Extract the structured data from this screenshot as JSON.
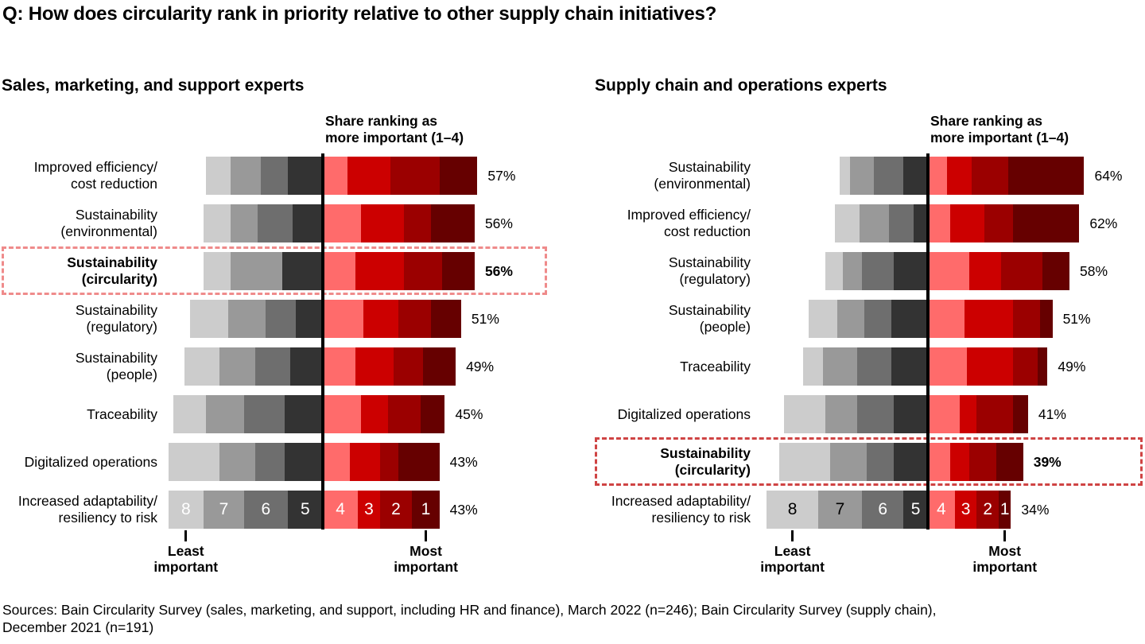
{
  "title": "Q: How does circularity rank in priority relative to other supply chain initiatives?",
  "sources_line1": "Sources: Bain Circularity Survey (sales, marketing, and support, including HR and finance), March 2022 (n=246); Bain Circularity Survey (supply chain),",
  "sources_line2": "December 2021 (n=191)",
  "colors": {
    "gray_segments": [
      "#cccccc",
      "#999999",
      "#6e6e6e",
      "#333333"
    ],
    "red_segments": [
      "#ff6b6b",
      "#cc0000",
      "#9b0000",
      "#660000"
    ],
    "axis_line": "#000000",
    "left_highlight_box": "#ef8b8b",
    "right_highlight_box": "#cf4444",
    "background": "#ffffff",
    "text": "#000000"
  },
  "chart_data": {
    "type": "diverging_stacked_bar",
    "description": "Two diverging stacked bar panels; gray segments = ranks 8-5 (least important side), red segments = ranks 4-1 (most important side). Percent label = share ranking initiative as more important (1-4). Segment values are percent of respondents.",
    "rank_labels": [
      "8",
      "7",
      "6",
      "5",
      "4",
      "3",
      "2",
      "1"
    ],
    "panels": [
      {
        "title": "Sales, marketing, and support experts",
        "annotation_line1": "Share ranking as",
        "annotation_line2": "more important (1–4)",
        "least_label": "Least important",
        "most_label": "Most important",
        "digit_colors": [
          "#ffffff",
          "#ffffff",
          "#ffffff",
          "#ffffff",
          "#ffffff",
          "#ffffff",
          "#ffffff",
          "#ffffff"
        ],
        "rows": [
          {
            "label_lines": [
              "Improved efficiency/",
              "cost reduction"
            ],
            "share_pct": 57,
            "share_label": "57%",
            "segments": [
              9,
              11,
              10,
              13,
              9,
              16,
              18,
              14
            ],
            "highlight": false
          },
          {
            "label_lines": [
              "Sustainability",
              "(environmental)"
            ],
            "share_pct": 56,
            "share_label": "56%",
            "segments": [
              10,
              10,
              13,
              11,
              14,
              16,
              10,
              16
            ],
            "highlight": false
          },
          {
            "label_lines": [
              "Sustainability",
              "(circularity)"
            ],
            "share_pct": 56,
            "share_label": "56%",
            "segments": [
              10,
              19,
              0,
              15,
              12,
              18,
              14,
              12
            ],
            "highlight": true
          },
          {
            "label_lines": [
              "Sustainability",
              "(regulatory)"
            ],
            "share_pct": 51,
            "share_label": "51%",
            "segments": [
              14,
              14,
              11,
              10,
              15,
              13,
              12,
              11
            ],
            "highlight": false
          },
          {
            "label_lines": [
              "Sustainability",
              "(people)"
            ],
            "share_pct": 49,
            "share_label": "49%",
            "segments": [
              13,
              13,
              13,
              12,
              12,
              14,
              11,
              12
            ],
            "highlight": false
          },
          {
            "label_lines": [
              "Traceability"
            ],
            "share_pct": 45,
            "share_label": "45%",
            "segments": [
              12,
              14,
              15,
              14,
              14,
              10,
              12,
              9
            ],
            "highlight": false
          },
          {
            "label_lines": [
              "Digitalized operations"
            ],
            "share_pct": 43,
            "share_label": "43%",
            "segments": [
              19,
              13,
              11,
              14,
              10,
              11,
              7,
              15
            ],
            "highlight": false
          },
          {
            "label_lines": [
              "Increased adaptability/",
              "resiliency to risk"
            ],
            "share_pct": 43,
            "share_label": "43%",
            "segments": [
              13,
              15,
              16,
              13,
              13,
              8,
              12,
              10
            ],
            "highlight": false
          }
        ]
      },
      {
        "title": "Supply chain and operations experts",
        "annotation_line1": "Share ranking as",
        "annotation_line2": "more important (1–4)",
        "least_label": "Least important",
        "most_label": "Most important",
        "digit_colors": [
          "#000000",
          "#000000",
          "#ffffff",
          "#ffffff",
          "#ffffff",
          "#ffffff",
          "#ffffff",
          "#ffffff"
        ],
        "rows": [
          {
            "label_lines": [
              "Sustainability",
              "(environmental)"
            ],
            "share_pct": 64,
            "share_label": "64%",
            "segments": [
              4,
              10,
              12,
              10,
              8,
              10,
              15,
              31
            ],
            "highlight": false
          },
          {
            "label_lines": [
              "Improved efficiency/",
              "cost reduction"
            ],
            "share_pct": 62,
            "share_label": "62%",
            "segments": [
              10,
              12,
              10,
              6,
              9,
              14,
              12,
              27
            ],
            "highlight": false
          },
          {
            "label_lines": [
              "Sustainability",
              "(regulatory)"
            ],
            "share_pct": 58,
            "share_label": "58%",
            "segments": [
              7,
              8,
              13,
              14,
              17,
              13,
              17,
              11
            ],
            "highlight": false
          },
          {
            "label_lines": [
              "Sustainability",
              "(people)"
            ],
            "share_pct": 51,
            "share_label": "51%",
            "segments": [
              12,
              11,
              11,
              15,
              15,
              20,
              11,
              5
            ],
            "highlight": false
          },
          {
            "label_lines": [
              "Traceability"
            ],
            "share_pct": 49,
            "share_label": "49%",
            "segments": [
              8,
              14,
              14,
              15,
              16,
              19,
              10,
              4
            ],
            "highlight": false
          },
          {
            "label_lines": [
              "Digitalized operations"
            ],
            "share_pct": 41,
            "share_label": "41%",
            "segments": [
              17,
              13,
              15,
              14,
              13,
              7,
              15,
              6
            ],
            "highlight": false
          },
          {
            "label_lines": [
              "Sustainability",
              "(circularity)"
            ],
            "share_pct": 39,
            "share_label": "39%",
            "segments": [
              21,
              15,
              11,
              14,
              9,
              8,
              11,
              11
            ],
            "highlight": true
          },
          {
            "label_lines": [
              "Increased adaptability/",
              "resiliency to risk"
            ],
            "share_pct": 34,
            "share_label": "34%",
            "segments": [
              21,
              18,
              17,
              10,
              11,
              9,
              9,
              5
            ],
            "highlight": false
          }
        ]
      }
    ]
  }
}
